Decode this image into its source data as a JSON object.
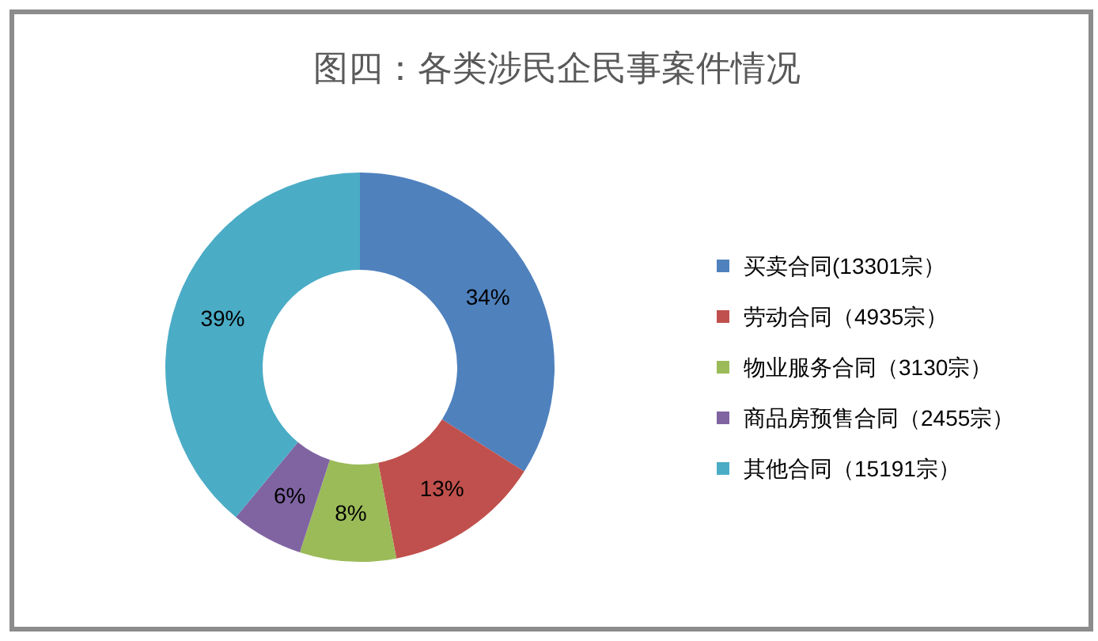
{
  "chart_data": {
    "type": "donut",
    "title": "图四：各类涉民企民事案件情况",
    "categories": [
      "买卖合同(13301宗）",
      "劳动合同（4935宗）",
      "物业服务合同（3130宗）",
      "商品房预售合同（2455宗）",
      "其他合同（15191宗）"
    ],
    "values": [
      34,
      13,
      8,
      6,
      39
    ],
    "value_labels": [
      "34%",
      "13%",
      "8%",
      "6%",
      "39%"
    ],
    "colors": [
      "#4f81bd",
      "#c0504d",
      "#9bbb59",
      "#8064a2",
      "#4bacc6"
    ],
    "legend": "right"
  }
}
